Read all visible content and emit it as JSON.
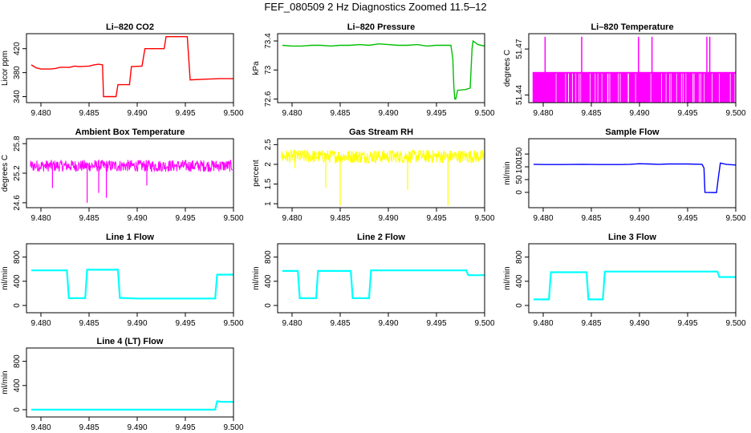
{
  "page_title": "FEF_080509  2 Hz Diagnostics Zoomed 11.5–12",
  "chart_data": [
    {
      "type": "line",
      "title": "Li–820 CO2",
      "ylabel": "Licor ppm",
      "xlabel": "",
      "color": "#ff0000",
      "xlim": [
        9.4785,
        9.5
      ],
      "ylim": [
        330,
        445
      ],
      "xticks": [
        "9.480",
        "9.485",
        "9.490",
        "9.495",
        "9.500"
      ],
      "yticks": [
        340,
        380,
        420
      ],
      "series": [
        {
          "points": [
            [
              9.479,
              393
            ],
            [
              9.4795,
              388
            ],
            [
              9.48,
              386
            ],
            [
              9.481,
              386
            ],
            [
              9.4815,
              387
            ],
            [
              9.482,
              389
            ],
            [
              9.483,
              389
            ],
            [
              9.4835,
              391
            ],
            [
              9.484,
              390
            ],
            [
              9.485,
              391
            ],
            [
              9.4855,
              393
            ],
            [
              9.486,
              394
            ],
            [
              9.4864,
              393
            ],
            [
              9.4865,
              340
            ],
            [
              9.4878,
              340
            ],
            [
              9.488,
              360
            ],
            [
              9.4892,
              360
            ],
            [
              9.4894,
              390
            ],
            [
              9.4905,
              391
            ],
            [
              9.4908,
              420
            ],
            [
              9.4915,
              420
            ],
            [
              9.4918,
              420
            ],
            [
              9.4928,
              420
            ],
            [
              9.493,
              440
            ],
            [
              9.4945,
              440
            ],
            [
              9.4952,
              440
            ],
            [
              9.4955,
              368
            ],
            [
              9.497,
              369
            ],
            [
              9.4985,
              370
            ],
            [
              9.5,
              370
            ]
          ]
        }
      ]
    },
    {
      "type": "line",
      "title": "Li–820 Pressure",
      "ylabel": "kPa",
      "xlabel": "",
      "color": "#00c000",
      "xlim": [
        9.4785,
        9.5
      ],
      "ylim": [
        72.55,
        73.5
      ],
      "xticks": [
        "9.480",
        "9.485",
        "9.490",
        "9.495",
        "9.500"
      ],
      "yticks": [
        72.6,
        73.0,
        73.4
      ],
      "series": [
        {
          "points": [
            [
              9.479,
              73.34
            ],
            [
              9.48,
              73.33
            ],
            [
              9.481,
              73.33
            ],
            [
              9.482,
              73.34
            ],
            [
              9.483,
              73.34
            ],
            [
              9.484,
              73.33
            ],
            [
              9.485,
              73.34
            ],
            [
              9.486,
              73.34
            ],
            [
              9.487,
              73.35
            ],
            [
              9.488,
              73.34
            ],
            [
              9.489,
              73.36
            ],
            [
              9.49,
              73.35
            ],
            [
              9.491,
              73.34
            ],
            [
              9.492,
              73.34
            ],
            [
              9.493,
              73.35
            ],
            [
              9.494,
              73.33
            ],
            [
              9.495,
              73.34
            ],
            [
              9.4965,
              73.34
            ],
            [
              9.4967,
              73.15
            ],
            [
              9.4968,
              72.78
            ],
            [
              9.4969,
              72.6
            ],
            [
              9.497,
              72.6
            ],
            [
              9.4972,
              72.72
            ],
            [
              9.498,
              72.73
            ],
            [
              9.4985,
              72.75
            ],
            [
              9.4987,
              73.3
            ],
            [
              9.4988,
              73.4
            ],
            [
              9.4993,
              73.35
            ],
            [
              9.5,
              73.33
            ]
          ]
        }
      ]
    },
    {
      "type": "bar",
      "title": "Li–820 Temperature",
      "ylabel": "degrees C",
      "xlabel": "",
      "color": "#ff00ff",
      "xlim": [
        9.4785,
        9.5
      ],
      "ylim": [
        51.435,
        51.48
      ],
      "xticks": [
        "9.480",
        "9.485",
        "9.490",
        "9.495",
        "9.500"
      ],
      "yticks": [
        51.44,
        51.47
      ],
      "base": 51.44,
      "level": 51.455,
      "spike": 51.478,
      "spikes_x": [
        9.4802,
        9.484,
        9.4899,
        9.4913,
        9.497,
        9.4973
      ]
    },
    {
      "type": "line",
      "title": "Ambient Box Temperature",
      "ylabel": "degrees C",
      "xlabel": "",
      "color": "#ff00ff",
      "xlim": [
        9.4785,
        9.5
      ],
      "ylim": [
        24.5,
        25.9
      ],
      "xticks": [
        "9.480",
        "9.485",
        "9.490",
        "9.495",
        "9.500"
      ],
      "yticks": [
        24.6,
        25.2,
        25.8
      ],
      "noise": {
        "x0": 9.4789,
        "x1": 9.4999,
        "center": 25.35,
        "amplitude": 0.12,
        "low_spikes": [
          [
            9.4812,
            24.9
          ],
          [
            9.4848,
            24.6
          ],
          [
            9.486,
            24.8
          ],
          [
            9.4868,
            24.7
          ],
          [
            9.491,
            24.95
          ]
        ]
      }
    },
    {
      "type": "line",
      "title": "Gas Stream RH",
      "ylabel": "percent",
      "xlabel": "",
      "color": "#ffff00",
      "xlim": [
        9.4785,
        9.5
      ],
      "ylim": [
        0.9,
        2.65
      ],
      "xticks": [
        "9.480",
        "9.485",
        "9.490",
        "9.495",
        "9.500"
      ],
      "yticks": [
        1.0,
        1.5,
        2.0,
        2.5
      ],
      "noise": {
        "x0": 9.4789,
        "x1": 9.4999,
        "center": 2.2,
        "amplitude": 0.17,
        "low_spikes": [
          [
            9.4803,
            1.9
          ],
          [
            9.4835,
            1.4
          ],
          [
            9.485,
            0.95
          ],
          [
            9.492,
            1.35
          ],
          [
            9.4962,
            0.95
          ]
        ]
      }
    },
    {
      "type": "line",
      "title": "Sample Flow",
      "ylabel": "ml/min",
      "xlabel": "",
      "color": "#0000ff",
      "xlim": [
        9.4785,
        9.5
      ],
      "ylim": [
        -60,
        210
      ],
      "xticks": [
        "9.480",
        "9.485",
        "9.490",
        "9.495",
        "9.500"
      ],
      "yticks": [
        0,
        50,
        100,
        150
      ],
      "series": [
        {
          "points": [
            [
              9.479,
              110
            ],
            [
              9.48,
              109
            ],
            [
              9.482,
              109
            ],
            [
              9.484,
              110
            ],
            [
              9.486,
              109
            ],
            [
              9.488,
              109
            ],
            [
              9.489,
              110
            ],
            [
              9.49,
              112
            ],
            [
              9.491,
              111
            ],
            [
              9.492,
              110
            ],
            [
              9.493,
              111
            ],
            [
              9.494,
              111
            ],
            [
              9.495,
              111
            ],
            [
              9.4965,
              110
            ],
            [
              9.4967,
              95
            ],
            [
              9.4968,
              0
            ],
            [
              9.498,
              -1
            ],
            [
              9.4982,
              60
            ],
            [
              9.4984,
              115
            ],
            [
              9.499,
              110
            ],
            [
              9.5,
              107
            ]
          ]
        }
      ]
    },
    {
      "type": "line",
      "title": "Line 1 Flow",
      "ylabel": "ml/min",
      "xlabel": "",
      "color": "#00ffff",
      "xlim": [
        9.4785,
        9.5
      ],
      "ylim": [
        -120,
        1020
      ],
      "xticks": [
        "9.480",
        "9.485",
        "9.490",
        "9.495",
        "9.500"
      ],
      "yticks": [
        0,
        400,
        800
      ],
      "series": [
        {
          "points": [
            [
              9.479,
              580
            ],
            [
              9.4827,
              580
            ],
            [
              9.4829,
              120
            ],
            [
              9.4846,
              120
            ],
            [
              9.4848,
              590
            ],
            [
              9.488,
              590
            ],
            [
              9.4882,
              125
            ],
            [
              9.49,
              115
            ],
            [
              9.4981,
              115
            ],
            [
              9.4983,
              510
            ],
            [
              9.5,
              510
            ]
          ]
        }
      ]
    },
    {
      "type": "line",
      "title": "Line 2 Flow",
      "ylabel": "ml/min",
      "xlabel": "",
      "color": "#00ffff",
      "xlim": [
        9.4785,
        9.5
      ],
      "ylim": [
        -120,
        1020
      ],
      "xticks": [
        "9.480",
        "9.485",
        "9.490",
        "9.495",
        "9.500"
      ],
      "yticks": [
        0,
        400,
        800
      ],
      "series": [
        {
          "points": [
            [
              9.479,
              570
            ],
            [
              9.4806,
              570
            ],
            [
              9.4808,
              120
            ],
            [
              9.4825,
              120
            ],
            [
              9.4827,
              570
            ],
            [
              9.4861,
              570
            ],
            [
              9.4863,
              120
            ],
            [
              9.488,
              120
            ],
            [
              9.4882,
              580
            ],
            [
              9.4981,
              580
            ],
            [
              9.4983,
              500
            ],
            [
              9.5,
              500
            ]
          ]
        }
      ]
    },
    {
      "type": "line",
      "title": "Line 3 Flow",
      "ylabel": "ml/min",
      "xlabel": "",
      "color": "#00ffff",
      "xlim": [
        9.4785,
        9.5
      ],
      "ylim": [
        -120,
        1020
      ],
      "xticks": [
        "9.480",
        "9.485",
        "9.490",
        "9.495",
        "9.500"
      ],
      "yticks": [
        0,
        400,
        800
      ],
      "series": [
        {
          "points": [
            [
              9.479,
              100
            ],
            [
              9.4806,
              100
            ],
            [
              9.4808,
              550
            ],
            [
              9.4845,
              550
            ],
            [
              9.4847,
              100
            ],
            [
              9.4862,
              100
            ],
            [
              9.4864,
              560
            ],
            [
              9.4981,
              560
            ],
            [
              9.4983,
              470
            ],
            [
              9.5,
              470
            ]
          ]
        }
      ]
    },
    {
      "type": "line",
      "title": "Line 4 (LT) Flow",
      "ylabel": "ml/min",
      "xlabel": "",
      "color": "#00ffff",
      "xlim": [
        9.4785,
        9.5
      ],
      "ylim": [
        -120,
        1020
      ],
      "xticks": [
        "9.480",
        "9.485",
        "9.490",
        "9.495",
        "9.500"
      ],
      "yticks": [
        0,
        400,
        800
      ],
      "series": [
        {
          "points": [
            [
              9.479,
              0
            ],
            [
              9.4981,
              0
            ],
            [
              9.4983,
              140
            ],
            [
              9.4988,
              130
            ],
            [
              9.5,
              130
            ]
          ]
        }
      ]
    }
  ]
}
